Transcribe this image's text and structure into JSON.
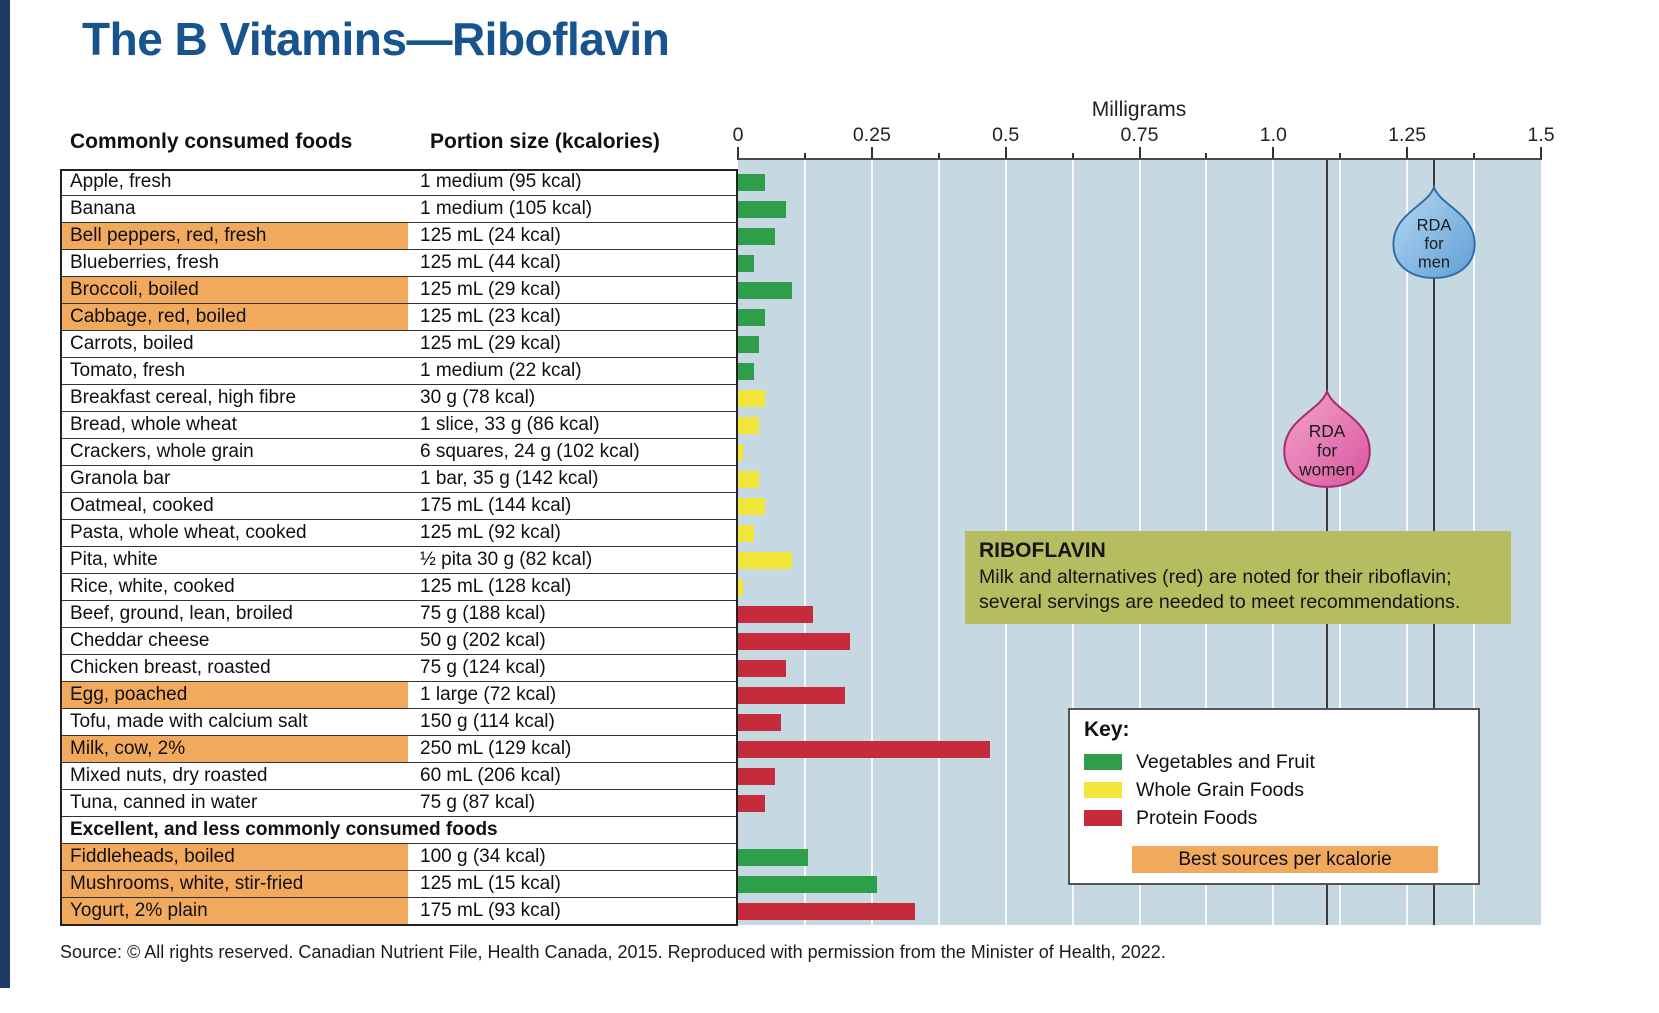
{
  "title": "The B Vitamins—Riboflavin",
  "source": "Source: © All rights reserved. Canadian Nutrient File, Health Canada, 2015. Reproduced with permission from the Minister of Health, 2022.",
  "table": {
    "col1_header": "Commonly consumed foods",
    "col2_header": "Portion size (kcalories)"
  },
  "axis": {
    "title": "Milligrams",
    "tick_values": [
      0,
      0.25,
      0.5,
      0.75,
      1.0,
      1.25,
      1.5
    ],
    "tick_labels": [
      "0",
      "0.25",
      "0.5",
      "0.75",
      "1.0",
      "1.25",
      "1.5"
    ],
    "min": 0,
    "max": 1.5,
    "minor_step": 0.125
  },
  "colors": {
    "veg": "#2f9e4b",
    "grain": "#f2e63a",
    "protein": "#c52b3a",
    "best": "#f1a95e",
    "chart_bg": "#c6d9e2",
    "rda_line": "#3a3a3a",
    "note_bg": "#b5bd60",
    "title": "#17538c"
  },
  "annotations": {
    "rda_men": {
      "lines": [
        "RDA",
        "for",
        "men"
      ],
      "value": 1.3
    },
    "rda_women": {
      "lines": [
        "RDA",
        "for",
        "women"
      ],
      "value": 1.1
    },
    "note": {
      "title": "RIBOFLAVIN",
      "text": "Milk and alternatives (red) are noted for their riboflavin; several servings are needed to meet recommendations."
    }
  },
  "key": {
    "title": "Key:",
    "items": [
      {
        "label": "Vegetables and Fruit",
        "group": "veg"
      },
      {
        "label": "Whole Grain Foods",
        "group": "grain"
      },
      {
        "label": "Protein Foods",
        "group": "protein"
      }
    ],
    "best_label": "Best sources per kcalorie"
  },
  "chart_data": {
    "type": "bar",
    "orientation": "horizontal",
    "unit": "mg",
    "title": "The B Vitamins—Riboflavin",
    "xlabel": "Milligrams",
    "xlim": [
      0,
      1.5
    ],
    "rda_lines": {
      "women": 1.1,
      "men": 1.3
    },
    "rows": [
      {
        "food": "Apple, fresh",
        "portion": "1 medium (95 kcal)",
        "value": 0.05,
        "group": "veg",
        "best": false
      },
      {
        "food": "Banana",
        "portion": "1 medium (105 kcal)",
        "value": 0.09,
        "group": "veg",
        "best": false
      },
      {
        "food": "Bell peppers, red, fresh",
        "portion": "125 mL (24 kcal)",
        "value": 0.07,
        "group": "veg",
        "best": true
      },
      {
        "food": "Blueberries, fresh",
        "portion": "125 mL (44 kcal)",
        "value": 0.03,
        "group": "veg",
        "best": false
      },
      {
        "food": "Broccoli, boiled",
        "portion": "125 mL (29 kcal)",
        "value": 0.1,
        "group": "veg",
        "best": true
      },
      {
        "food": "Cabbage, red, boiled",
        "portion": "125 mL (23 kcal)",
        "value": 0.05,
        "group": "veg",
        "best": true
      },
      {
        "food": "Carrots, boiled",
        "portion": "125 mL (29 kcal)",
        "value": 0.04,
        "group": "veg",
        "best": false
      },
      {
        "food": "Tomato, fresh",
        "portion": "1 medium (22 kcal)",
        "value": 0.03,
        "group": "veg",
        "best": false
      },
      {
        "food": "Breakfast cereal, high fibre",
        "portion": "30 g (78 kcal)",
        "value": 0.05,
        "group": "grain",
        "best": false
      },
      {
        "food": "Bread, whole wheat",
        "portion": "1 slice, 33 g (86 kcal)",
        "value": 0.04,
        "group": "grain",
        "best": false
      },
      {
        "food": "Crackers, whole grain",
        "portion": "6 squares, 24 g (102 kcal)",
        "value": 0.01,
        "group": "grain",
        "best": false
      },
      {
        "food": "Granola bar",
        "portion": "1 bar, 35 g (142 kcal)",
        "value": 0.04,
        "group": "grain",
        "best": false
      },
      {
        "food": "Oatmeal, cooked",
        "portion": "175 mL (144 kcal)",
        "value": 0.05,
        "group": "grain",
        "best": false
      },
      {
        "food": "Pasta, whole wheat, cooked",
        "portion": "125 mL (92 kcal)",
        "value": 0.03,
        "group": "grain",
        "best": false
      },
      {
        "food": "Pita, white",
        "portion": "½ pita 30 g (82 kcal)",
        "value": 0.1,
        "group": "grain",
        "best": false
      },
      {
        "food": "Rice, white, cooked",
        "portion": "125 mL (128 kcal)",
        "value": 0.01,
        "group": "grain",
        "best": false
      },
      {
        "food": "Beef, ground, lean, broiled",
        "portion": "75 g (188 kcal)",
        "value": 0.14,
        "group": "protein",
        "best": false
      },
      {
        "food": "Cheddar cheese",
        "portion": "50 g (202 kcal)",
        "value": 0.21,
        "group": "protein",
        "best": false
      },
      {
        "food": "Chicken breast, roasted",
        "portion": "75 g (124 kcal)",
        "value": 0.09,
        "group": "protein",
        "best": false
      },
      {
        "food": "Egg, poached",
        "portion": "1 large (72 kcal)",
        "value": 0.2,
        "group": "protein",
        "best": true
      },
      {
        "food": "Tofu, made with calcium salt",
        "portion": "150 g (114 kcal)",
        "value": 0.08,
        "group": "protein",
        "best": false
      },
      {
        "food": "Milk, cow, 2%",
        "portion": "250 mL (129 kcal)",
        "value": 0.47,
        "group": "protein",
        "best": true
      },
      {
        "food": "Mixed nuts, dry roasted",
        "portion": "60 mL (206 kcal)",
        "value": 0.07,
        "group": "protein",
        "best": false
      },
      {
        "food": "Tuna, canned in water",
        "portion": "75 g (87 kcal)",
        "value": 0.05,
        "group": "protein",
        "best": false
      },
      {
        "section": "Excellent, and less commonly consumed foods"
      },
      {
        "food": "Fiddleheads, boiled",
        "portion": "100 g (34 kcal)",
        "value": 0.13,
        "group": "veg",
        "best": true
      },
      {
        "food": "Mushrooms, white, stir-fried",
        "portion": "125 mL (15 kcal)",
        "value": 0.26,
        "group": "veg",
        "best": true
      },
      {
        "food": "Yogurt, 2% plain",
        "portion": "175 mL (93 kcal)",
        "value": 0.33,
        "group": "protein",
        "best": true
      }
    ]
  }
}
